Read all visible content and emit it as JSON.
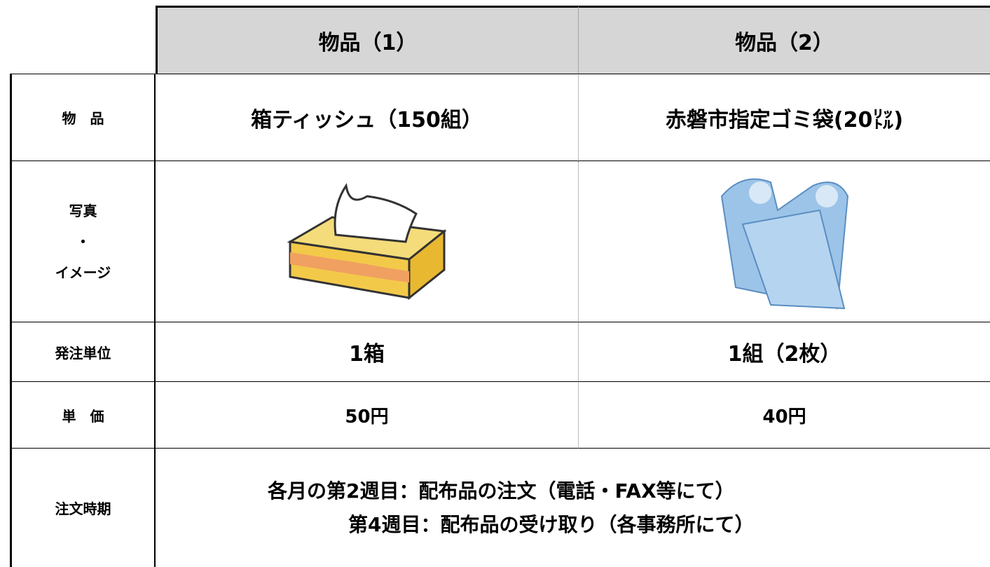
{
  "header": {
    "columns": [
      "物品（1）",
      "物品（2）"
    ]
  },
  "rows": [
    {
      "label": "物　品",
      "cells": [
        "箱ティッシュ（150組）",
        "赤磐市指定ゴミ袋(20㍑)"
      ]
    },
    {
      "label_lines": [
        "写真",
        "・",
        "イメージ"
      ]
    },
    {
      "label": "発注単位",
      "cells": [
        "1箱",
        "1組（2枚）"
      ]
    },
    {
      "label": "単　価",
      "cells": [
        "50円",
        "40円"
      ]
    },
    {
      "label": "注文時期",
      "lines": [
        "各月の第2週目：配布品の注文（電話・FAX等にて）",
        "第4週目：配布品の受け取り（各事務所にて）"
      ]
    }
  ]
}
